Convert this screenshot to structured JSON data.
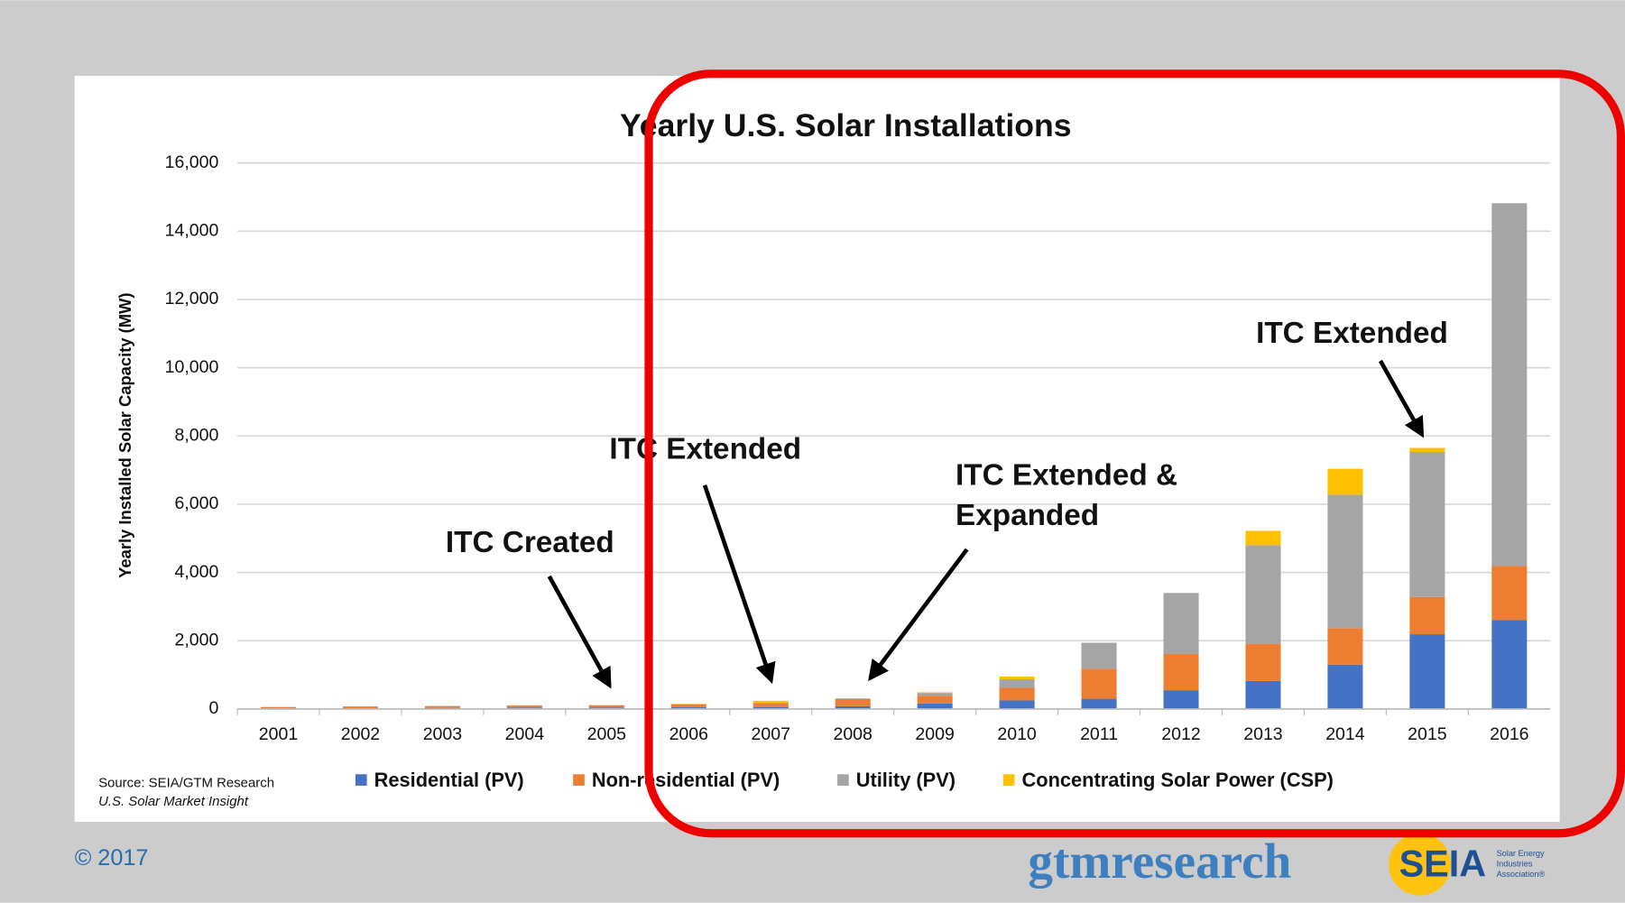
{
  "chart_data": {
    "type": "stacked_bar",
    "title": "Yearly U.S. Solar Installations",
    "y_label": "Yearly Installed Solar Capacity (MW)",
    "categories": [
      "2001",
      "2002",
      "2003",
      "2004",
      "2005",
      "2006",
      "2007",
      "2008",
      "2009",
      "2010",
      "2011",
      "2012",
      "2013",
      "2014",
      "2015",
      "2016"
    ],
    "series": [
      {
        "name": "Residential (PV)",
        "color": "#4472c4",
        "values": [
          20,
          25,
          30,
          40,
          40,
          50,
          60,
          80,
          160,
          250,
          300,
          550,
          820,
          1300,
          2190,
          2610
        ]
      },
      {
        "name": "Non-residential (PV)",
        "color": "#ed7d31",
        "values": [
          30,
          40,
          50,
          60,
          70,
          90,
          110,
          210,
          230,
          370,
          880,
          1060,
          1090,
          1070,
          1090,
          1580
        ]
      },
      {
        "name": "Utility (PV)",
        "color": "#a5a5a5",
        "values": [
          10,
          10,
          10,
          10,
          0,
          0,
          10,
          20,
          80,
          250,
          760,
          1790,
          2890,
          3910,
          4250,
          10630
        ]
      },
      {
        "name": "Concentrating Solar Power (CSP)",
        "color": "#ffc000",
        "values": [
          0,
          0,
          0,
          0,
          0,
          10,
          60,
          0,
          20,
          80,
          0,
          0,
          420,
          760,
          120,
          0
        ]
      }
    ],
    "ylim": [
      0,
      16000
    ],
    "yticks": [
      0,
      {
        "value": 2000,
        "label": "2,000"
      },
      {
        "value": 4000,
        "label": "4,000"
      },
      {
        "value": 6000,
        "label": "6,000"
      },
      {
        "value": 8000,
        "label": "8,000"
      },
      {
        "value": 10000,
        "label": "10,000"
      },
      {
        "value": 12000,
        "label": "12,000"
      },
      {
        "value": 14000,
        "label": "14,000"
      },
      {
        "value": 16000,
        "label": "16,000"
      }
    ],
    "grid": true,
    "annotations": [
      [
        "ITC Created"
      ],
      [
        "ITC Extended"
      ],
      [
        "ITC Extended &",
        "Expanded"
      ],
      [
        "ITC Extended"
      ]
    ],
    "source": [
      "Source: SEIA/GTM Research",
      "U.S. Solar Market Insight"
    ]
  },
  "footer": {
    "copyright": "© 2017",
    "logo": "gtmresearch",
    "seia": "SEIA",
    "seia_sub": [
      "Solar Energy",
      "Industries",
      "Association®"
    ]
  }
}
